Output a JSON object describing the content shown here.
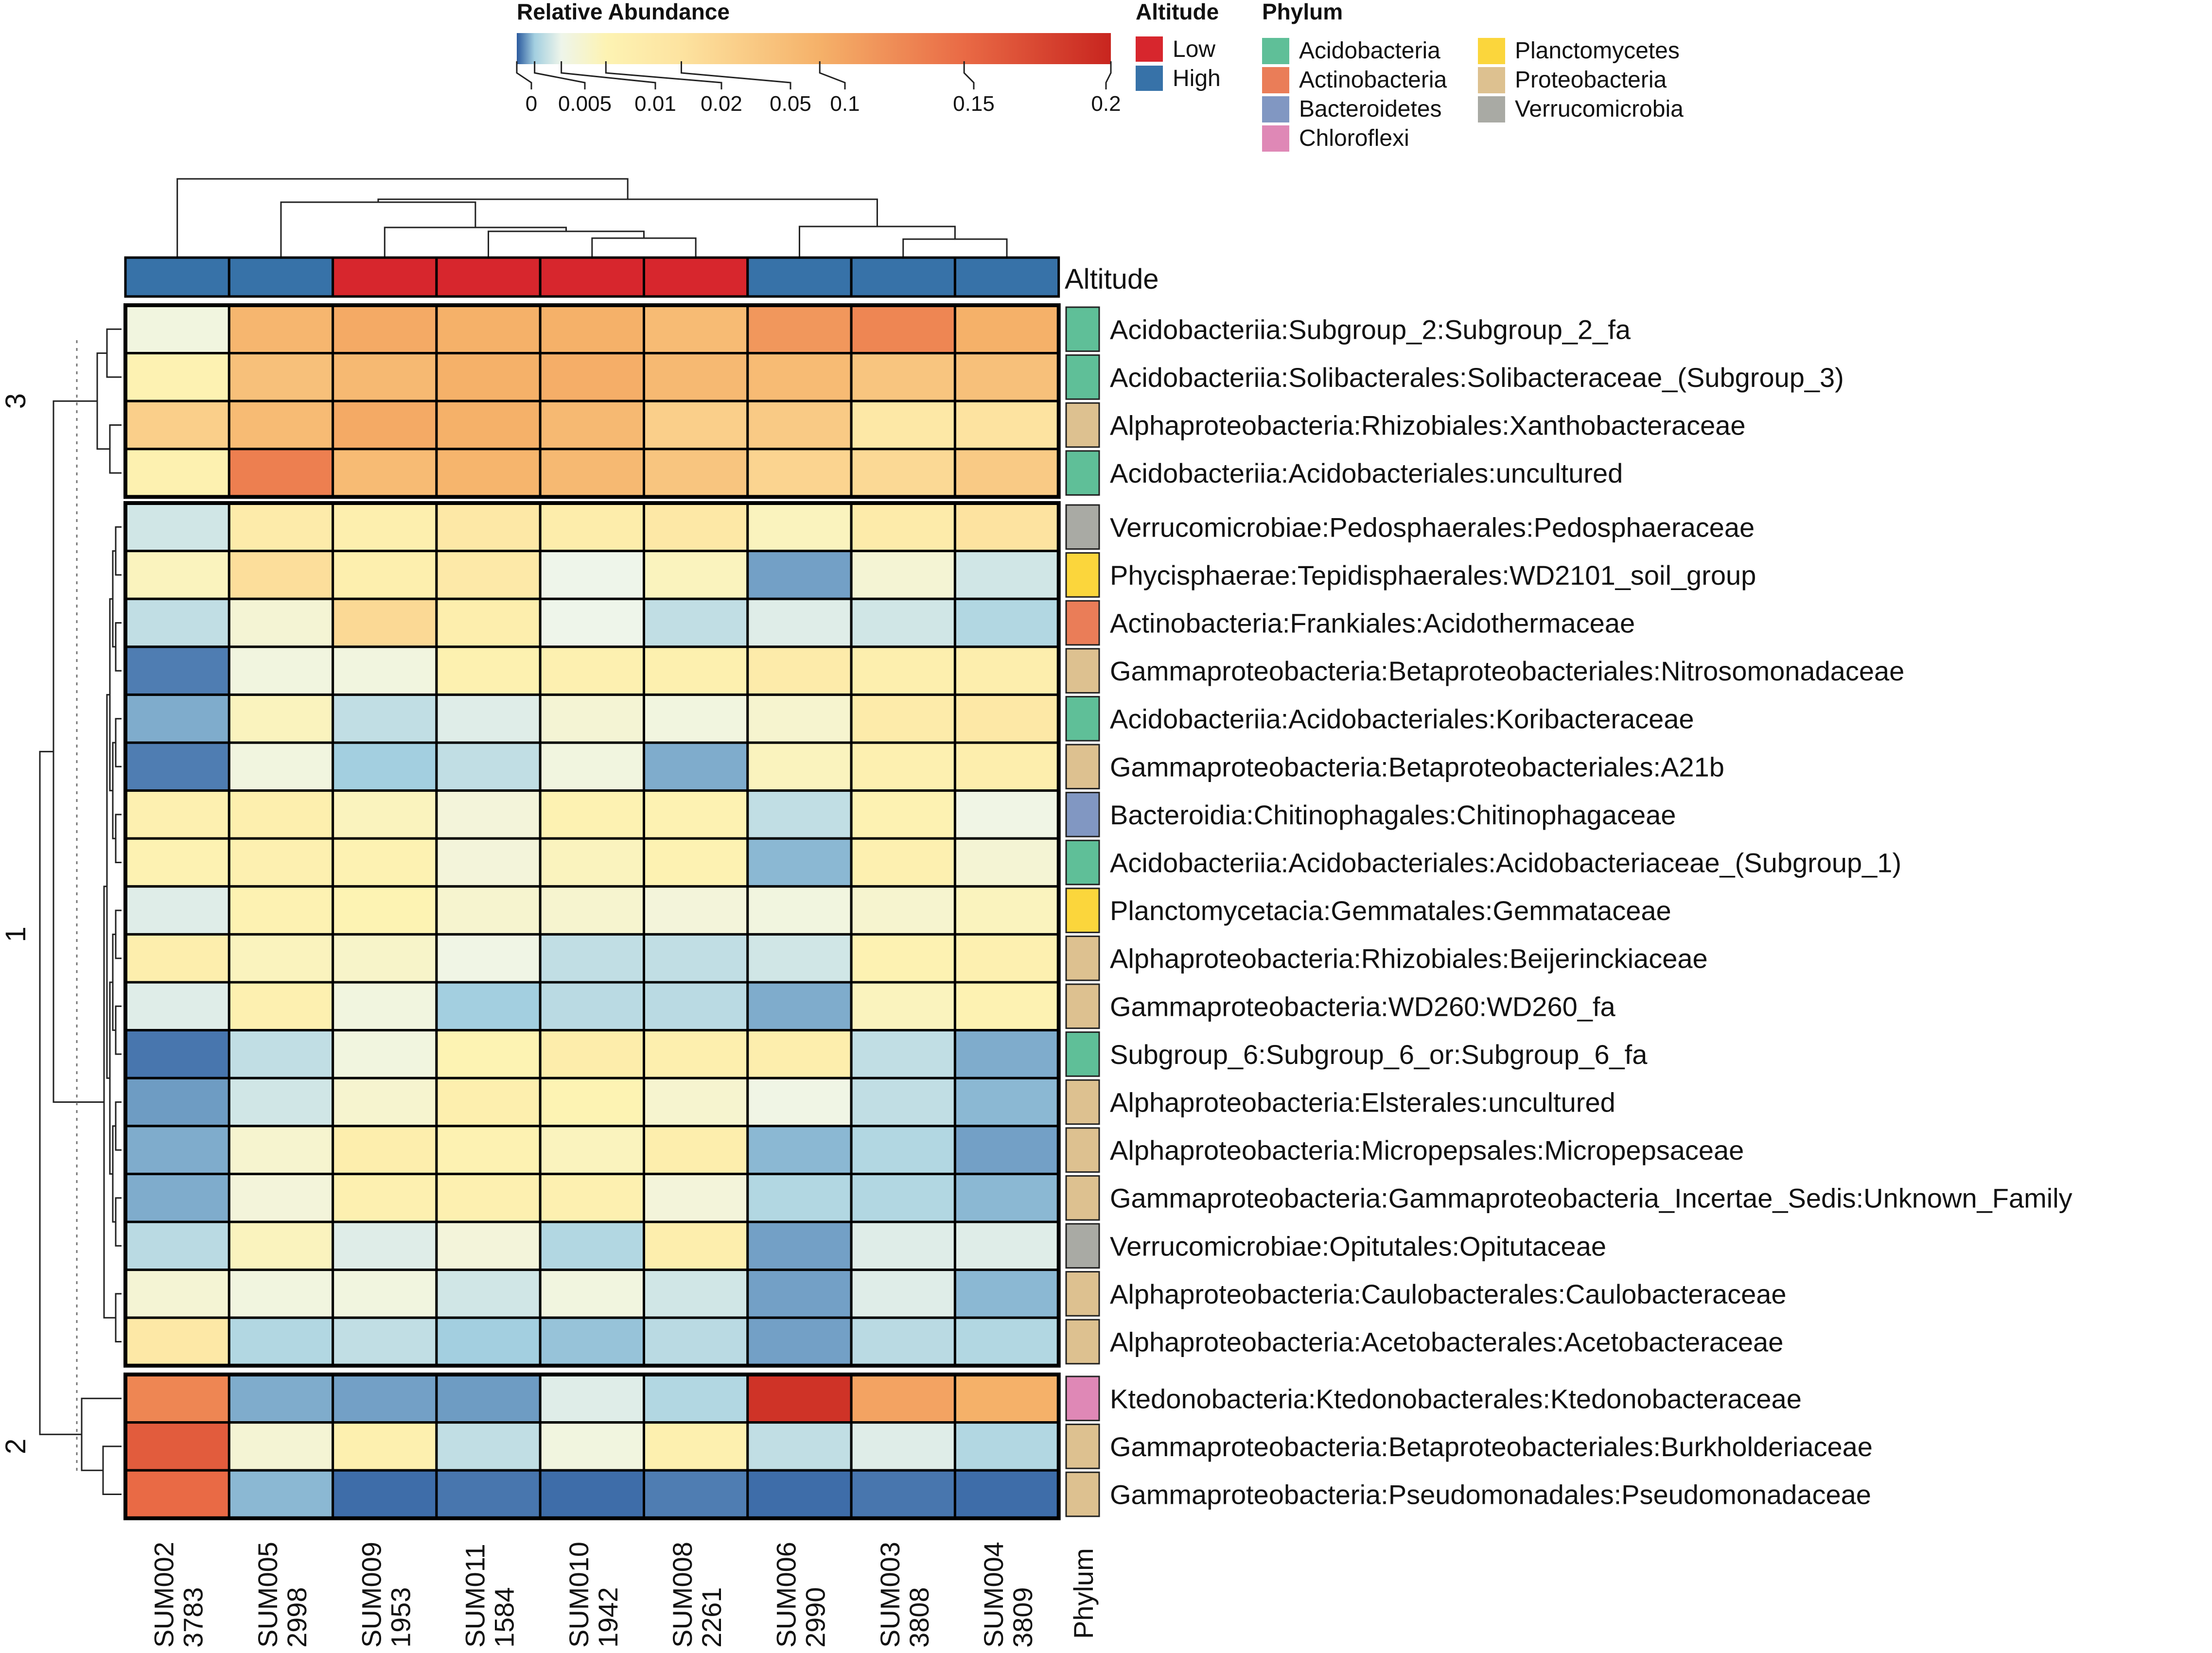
{
  "chart_data": {
    "type": "heatmap",
    "title": "",
    "legend_title": "Relative Abundance",
    "color_scale": {
      "ticks": [
        0,
        0.005,
        0.01,
        0.02,
        0.05,
        0.1,
        0.15,
        0.2
      ],
      "tick_labels": [
        "0",
        "0.005",
        "0.01",
        "0.02",
        "0.05",
        "0.1",
        "0.15",
        "0.2"
      ],
      "stops": [
        {
          "value": 0,
          "color": "#2b5a9e"
        },
        {
          "value": 0.005,
          "color": "#a3cfe0"
        },
        {
          "value": 0.01,
          "color": "#eef5ea"
        },
        {
          "value": 0.02,
          "color": "#fdf3b3"
        },
        {
          "value": 0.05,
          "color": "#fde3a0"
        },
        {
          "value": 0.1,
          "color": "#f5b169"
        },
        {
          "value": 0.15,
          "color": "#e96a45"
        },
        {
          "value": 0.2,
          "color": "#c8251f"
        }
      ]
    },
    "samples": [
      {
        "id": "SUM002",
        "alt_m": "3783",
        "altitude": "High"
      },
      {
        "id": "SUM005",
        "alt_m": "2998",
        "altitude": "High"
      },
      {
        "id": "SUM009",
        "alt_m": "1953",
        "altitude": "Low"
      },
      {
        "id": "SUM011",
        "alt_m": "1584",
        "altitude": "Low"
      },
      {
        "id": "SUM010",
        "alt_m": "1942",
        "altitude": "Low"
      },
      {
        "id": "SUM008",
        "alt_m": "2261",
        "altitude": "Low"
      },
      {
        "id": "SUM006",
        "alt_m": "2990",
        "altitude": "High"
      },
      {
        "id": "SUM003",
        "alt_m": "3808",
        "altitude": "High"
      },
      {
        "id": "SUM004",
        "alt_m": "3809",
        "altitude": "High"
      }
    ],
    "altitude_annotation": {
      "title": "Altitude",
      "levels": [
        {
          "name": "Low",
          "color": "#d7262d"
        },
        {
          "name": "High",
          "color": "#3772a8"
        }
      ]
    },
    "phylum_annotation": {
      "title": "Phylum",
      "column_label": "Phylum",
      "levels": [
        {
          "name": "Acidobacteria",
          "color": "#5fbf98"
        },
        {
          "name": "Actinobacteria",
          "color": "#ea7d58"
        },
        {
          "name": "Bacteroidetes",
          "color": "#8197c2"
        },
        {
          "name": "Chloroflexi",
          "color": "#df88b6"
        },
        {
          "name": "Planctomycetes",
          "color": "#fbd63c"
        },
        {
          "name": "Proteobacteria",
          "color": "#ddc190"
        },
        {
          "name": "Verrucomicrobia",
          "color": "#a9aaa4"
        }
      ]
    },
    "clusters": [
      {
        "label": "3",
        "rows": 4
      },
      {
        "label": "1",
        "rows": 18
      },
      {
        "label": "2",
        "rows": 3
      }
    ],
    "rows": [
      {
        "taxon": "Acidobacteriia:Subgroup_2:Subgroup_2_fa",
        "phylum": "Acidobacteria",
        "values": [
          0.012,
          0.095,
          0.105,
          0.1,
          0.1,
          0.09,
          0.118,
          0.13,
          0.1
        ]
      },
      {
        "taxon": "Acidobacteriia:Solibacterales:Solibacteraceae_(Subgroup_3)",
        "phylum": "Acidobacteria",
        "values": [
          0.022,
          0.085,
          0.092,
          0.1,
          0.102,
          0.092,
          0.09,
          0.08,
          0.085
        ]
      },
      {
        "taxon": "Alphaproteobacteria:Rhizobiales:Xanthobacteraceae",
        "phylum": "Proteobacteria",
        "values": [
          0.07,
          0.09,
          0.105,
          0.1,
          0.092,
          0.07,
          0.075,
          0.04,
          0.05
        ]
      },
      {
        "taxon": "Acidobacteriia:Acidobacteriales:uncultured",
        "phylum": "Acidobacteria",
        "values": [
          0.024,
          0.135,
          0.09,
          0.096,
          0.092,
          0.08,
          0.065,
          0.06,
          0.075
        ]
      },
      {
        "taxon": "Verrucomicrobiae:Pedosphaerales:Pedosphaeraceae",
        "phylum": "Verrucomicrobia",
        "values": [
          0.008,
          0.035,
          0.028,
          0.04,
          0.032,
          0.04,
          0.018,
          0.035,
          0.05
        ]
      },
      {
        "taxon": "Phycisphaerae:Tepidisphaerales:WD2101_soil_group",
        "phylum": "Planctomycetes",
        "values": [
          0.018,
          0.055,
          0.028,
          0.038,
          0.01,
          0.018,
          0.003,
          0.014,
          0.008
        ]
      },
      {
        "taxon": "Actinobacteria:Frankiales:Acidothermaceae",
        "phylum": "Actinobacteria",
        "values": [
          0.007,
          0.014,
          0.06,
          0.03,
          0.01,
          0.007,
          0.009,
          0.008,
          0.006
        ]
      },
      {
        "taxon": "Gammaproteobacteria:Betaproteobacteriales:Nitrosomonadaceae",
        "phylum": "Proteobacteria",
        "values": [
          0.0015,
          0.012,
          0.012,
          0.024,
          0.025,
          0.026,
          0.035,
          0.028,
          0.03
        ]
      },
      {
        "taxon": "Acidobacteriia:Acidobacteriales:Koribacteraceae",
        "phylum": "Acidobacteria",
        "values": [
          0.0035,
          0.018,
          0.007,
          0.009,
          0.014,
          0.012,
          0.015,
          0.035,
          0.04
        ]
      },
      {
        "taxon": "Gammaproteobacteria:Betaproteobacteriales:A21b",
        "phylum": "Proteobacteria",
        "values": [
          0.0015,
          0.012,
          0.005,
          0.007,
          0.012,
          0.0035,
          0.018,
          0.025,
          0.03
        ]
      },
      {
        "taxon": "Bacteroidia:Chitinophagales:Chitinophagaceae",
        "phylum": "Bacteroidetes",
        "values": [
          0.025,
          0.028,
          0.018,
          0.013,
          0.022,
          0.022,
          0.007,
          0.022,
          0.011
        ]
      },
      {
        "taxon": "Acidobacteriia:Acidobacteriales:Acidobacteriaceae_(Subgroup_1)",
        "phylum": "Acidobacteria",
        "values": [
          0.022,
          0.025,
          0.022,
          0.013,
          0.018,
          0.022,
          0.004,
          0.025,
          0.014
        ]
      },
      {
        "taxon": "Planctomycetacia:Gemmatales:Gemmataceae",
        "phylum": "Planctomycetes",
        "values": [
          0.009,
          0.022,
          0.02,
          0.015,
          0.015,
          0.013,
          0.012,
          0.015,
          0.018
        ]
      },
      {
        "taxon": "Alphaproteobacteria:Rhizobiales:Beijerinckiaceae",
        "phylum": "Proteobacteria",
        "values": [
          0.03,
          0.018,
          0.016,
          0.011,
          0.007,
          0.007,
          0.008,
          0.022,
          0.025
        ]
      },
      {
        "taxon": "Gammaproteobacteria:WD260:WD260_fa",
        "phylum": "Proteobacteria",
        "values": [
          0.009,
          0.025,
          0.012,
          0.005,
          0.0065,
          0.0065,
          0.0035,
          0.018,
          0.022
        ]
      },
      {
        "taxon": "Subgroup_6:Subgroup_6_or:Subgroup_6_fa",
        "phylum": "Acidobacteria",
        "values": [
          0.0012,
          0.007,
          0.012,
          0.02,
          0.032,
          0.028,
          0.03,
          0.007,
          0.0035
        ]
      },
      {
        "taxon": "Alphaproteobacteria:Elsterales:uncultured",
        "phylum": "Proteobacteria",
        "values": [
          0.0028,
          0.008,
          0.015,
          0.028,
          0.02,
          0.015,
          0.011,
          0.007,
          0.004
        ]
      },
      {
        "taxon": "Alphaproteobacteria:Micropepsales:Micropepsaceae",
        "phylum": "Proteobacteria",
        "values": [
          0.0035,
          0.015,
          0.03,
          0.022,
          0.018,
          0.03,
          0.004,
          0.006,
          0.003
        ]
      },
      {
        "taxon": "Gammaproteobacteria:Gammaproteobacteria_Incertae_Sedis:Unknown_Family",
        "phylum": "Proteobacteria",
        "values": [
          0.0035,
          0.013,
          0.025,
          0.025,
          0.025,
          0.013,
          0.006,
          0.006,
          0.004
        ]
      },
      {
        "taxon": "Verrucomicrobiae:Opitutales:Opitutaceae",
        "phylum": "Verrucomicrobia",
        "values": [
          0.0065,
          0.018,
          0.009,
          0.013,
          0.006,
          0.03,
          0.003,
          0.009,
          0.009
        ]
      },
      {
        "taxon": "Alphaproteobacteria:Caulobacterales:Caulobacteraceae",
        "phylum": "Proteobacteria",
        "values": [
          0.014,
          0.012,
          0.012,
          0.008,
          0.012,
          0.008,
          0.003,
          0.009,
          0.004
        ]
      },
      {
        "taxon": "Alphaproteobacteria:Acetobacterales:Acetobacteraceae",
        "phylum": "Proteobacteria",
        "values": [
          0.04,
          0.006,
          0.007,
          0.005,
          0.0045,
          0.0065,
          0.003,
          0.0065,
          0.006
        ]
      },
      {
        "taxon": "Ktedonobacteria:Ktedonobacterales:Ktedonobacteraceae",
        "phylum": "Chloroflexi",
        "values": [
          0.13,
          0.0035,
          0.003,
          0.0028,
          0.009,
          0.006,
          0.19,
          0.11,
          0.1
        ]
      },
      {
        "taxon": "Gammaproteobacteria:Betaproteobacteriales:Burkholderiaceae",
        "phylum": "Proteobacteria",
        "values": [
          0.16,
          0.014,
          0.026,
          0.007,
          0.012,
          0.026,
          0.007,
          0.009,
          0.006
        ]
      },
      {
        "taxon": "Gammaproteobacteria:Pseudomonadales:Pseudomonadaceae",
        "phylum": "Proteobacteria",
        "values": [
          0.15,
          0.004,
          0.0008,
          0.0012,
          0.0008,
          0.0015,
          0.0008,
          0.0012,
          0.0008
        ]
      }
    ]
  }
}
